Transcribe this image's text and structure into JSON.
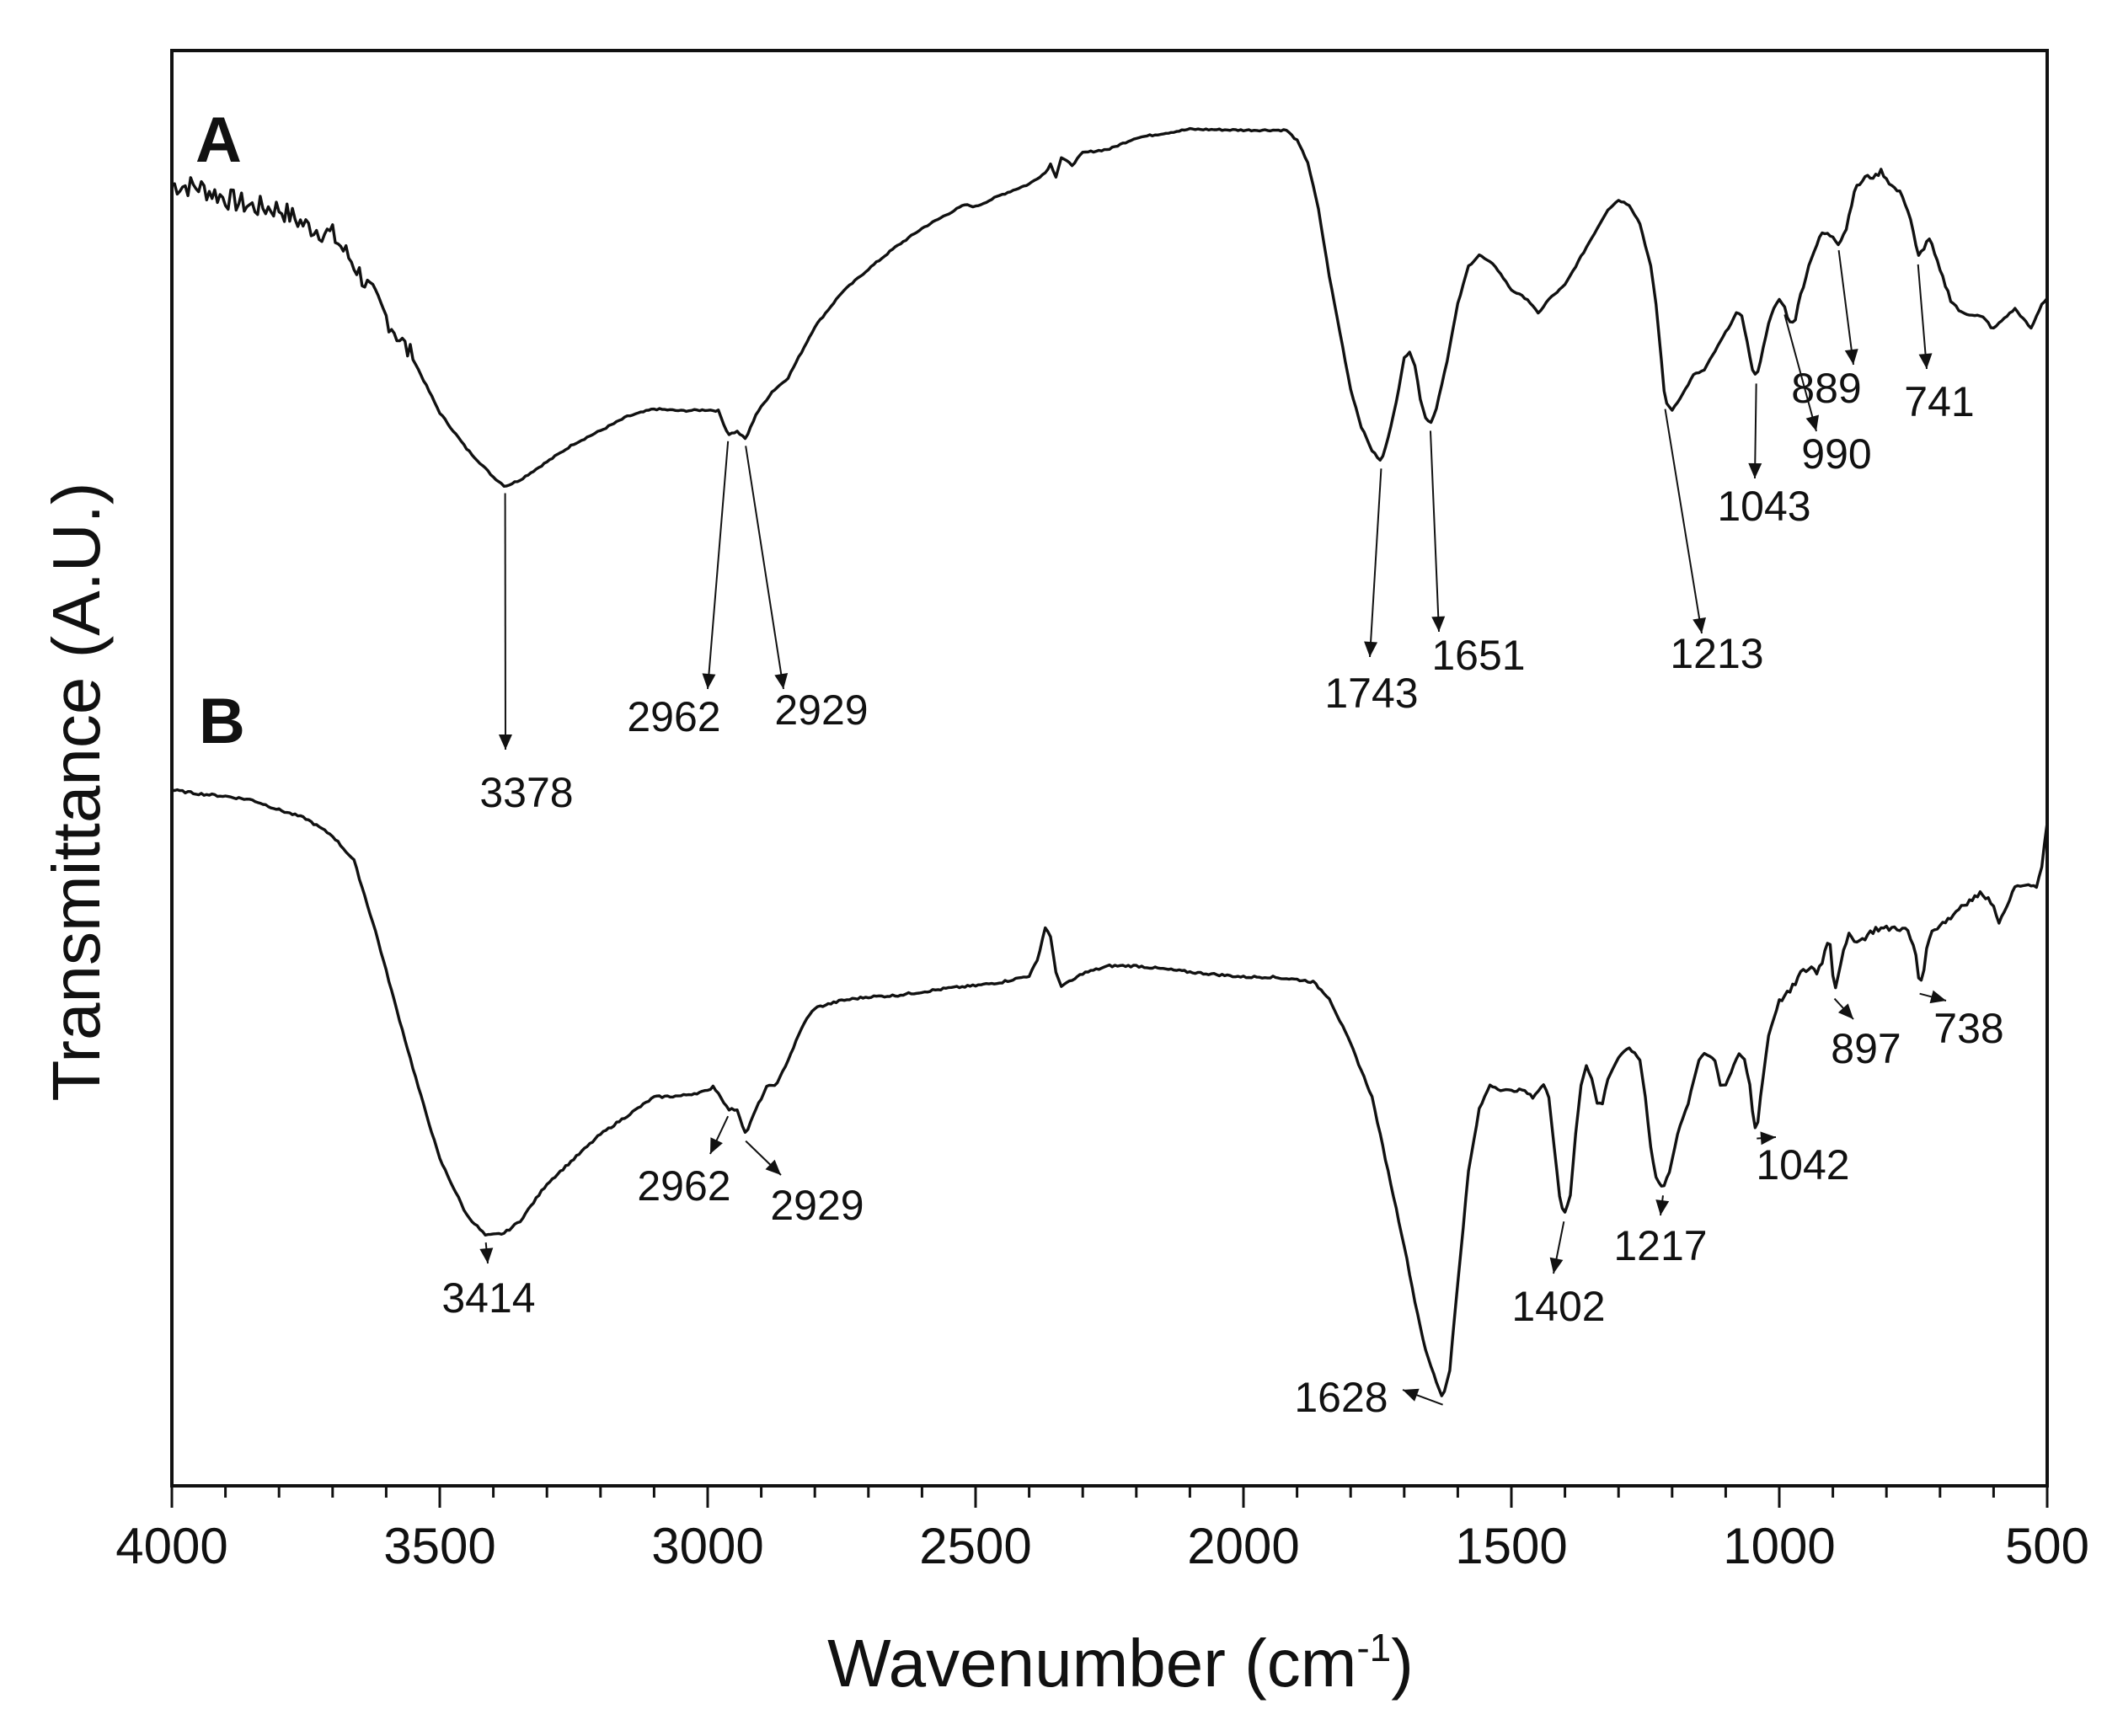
{
  "chart_data": {
    "type": "line",
    "title": "",
    "xlabel": "Wavenumber (cm",
    "xlabel_sup": "-1",
    "xlabel_close": ")",
    "ylabel": "Transmittance (A.U.)",
    "xlim": [
      4000,
      500
    ],
    "ylim": [
      0,
      100
    ],
    "x_ticks": [
      4000,
      3500,
      3000,
      2500,
      2000,
      1500,
      1000,
      500
    ],
    "x_tick_labels": [
      "4000",
      "3500",
      "3000",
      "2500",
      "2000",
      "1500",
      "1000",
      "500"
    ],
    "minor_tick_step": 100,
    "line_color": "#111111",
    "series": [
      {
        "name": "A",
        "label": "A",
        "points": [
          [
            4000,
            85.6
          ],
          [
            3950,
            85.4
          ],
          [
            3900,
            84.2
          ],
          [
            3850,
            83.3
          ],
          [
            3800,
            83.1
          ],
          [
            3750,
            81.3
          ],
          [
            3700,
            80.3
          ],
          [
            3660,
            77.2
          ],
          [
            3620,
            73.5
          ],
          [
            3580,
            69.8
          ],
          [
            3550,
            67.2
          ],
          [
            3500,
            61.5
          ],
          [
            3450,
            57.7
          ],
          [
            3400,
            54.7
          ],
          [
            3378,
            53.7
          ],
          [
            3350,
            54.4
          ],
          [
            3300,
            56.3
          ],
          [
            3250,
            58.2
          ],
          [
            3200,
            59.6
          ],
          [
            3150,
            61.1
          ],
          [
            3100,
            61.9
          ],
          [
            3050,
            61.7
          ],
          [
            3000,
            61.8
          ],
          [
            2980,
            61.7
          ],
          [
            2962,
            59.2
          ],
          [
            2945,
            59.5
          ],
          [
            2929,
            58.7
          ],
          [
            2910,
            61.3
          ],
          [
            2880,
            63.7
          ],
          [
            2850,
            65.2
          ],
          [
            2800,
            70.6
          ],
          [
            2750,
            74.2
          ],
          [
            2700,
            76.7
          ],
          [
            2650,
            79.0
          ],
          [
            2600,
            81.0
          ],
          [
            2550,
            82.6
          ],
          [
            2520,
            83.5
          ],
          [
            2500,
            83.3
          ],
          [
            2450,
            84.6
          ],
          [
            2400,
            85.7
          ],
          [
            2370,
            86.9
          ],
          [
            2360,
            87.8
          ],
          [
            2350,
            86.5
          ],
          [
            2340,
            88.5
          ],
          [
            2320,
            87.7
          ],
          [
            2300,
            89.0
          ],
          [
            2250,
            89.4
          ],
          [
            2200,
            90.6
          ],
          [
            2100,
            91.5
          ],
          [
            2000,
            91.4
          ],
          [
            1950,
            91.4
          ],
          [
            1920,
            91.4
          ],
          [
            1900,
            90.3
          ],
          [
            1880,
            88.0
          ],
          [
            1860,
            83.0
          ],
          [
            1840,
            76.0
          ],
          [
            1820,
            70.0
          ],
          [
            1800,
            64.0
          ],
          [
            1780,
            60.0
          ],
          [
            1760,
            57.5
          ],
          [
            1743,
            56.3
          ],
          [
            1730,
            58.8
          ],
          [
            1710,
            64.0
          ],
          [
            1700,
            67.3
          ],
          [
            1690,
            68.0
          ],
          [
            1680,
            66.5
          ],
          [
            1670,
            63.0
          ],
          [
            1660,
            61.0
          ],
          [
            1651,
            60.3
          ],
          [
            1640,
            62.0
          ],
          [
            1620,
            67.0
          ],
          [
            1600,
            73.0
          ],
          [
            1580,
            77.0
          ],
          [
            1560,
            78.2
          ],
          [
            1530,
            77.0
          ],
          [
            1500,
            74.5
          ],
          [
            1470,
            73.5
          ],
          [
            1450,
            72.0
          ],
          [
            1430,
            73.5
          ],
          [
            1400,
            75.0
          ],
          [
            1380,
            77.0
          ],
          [
            1350,
            80.0
          ],
          [
            1320,
            83.0
          ],
          [
            1300,
            84.0
          ],
          [
            1280,
            83.5
          ],
          [
            1260,
            81.5
          ],
          [
            1240,
            77.0
          ],
          [
            1230,
            73.0
          ],
          [
            1220,
            67.0
          ],
          [
            1213,
            62.6
          ],
          [
            1200,
            61.8
          ],
          [
            1180,
            63.5
          ],
          [
            1160,
            65.5
          ],
          [
            1140,
            66.0
          ],
          [
            1120,
            68.0
          ],
          [
            1100,
            70.0
          ],
          [
            1080,
            72.0
          ],
          [
            1070,
            71.8
          ],
          [
            1060,
            69.0
          ],
          [
            1050,
            66.0
          ],
          [
            1043,
            65.3
          ],
          [
            1035,
            67.0
          ],
          [
            1020,
            71.0
          ],
          [
            1010,
            72.5
          ],
          [
            1000,
            73.5
          ],
          [
            990,
            72.6
          ],
          [
            980,
            71.0
          ],
          [
            970,
            71.5
          ],
          [
            960,
            74.0
          ],
          [
            940,
            78.0
          ],
          [
            920,
            80.5
          ],
          [
            900,
            80.2
          ],
          [
            889,
            79.4
          ],
          [
            875,
            81.0
          ],
          [
            860,
            85.0
          ],
          [
            840,
            86.4
          ],
          [
            820,
            86.5
          ],
          [
            810,
            87.1
          ],
          [
            790,
            85.5
          ],
          [
            770,
            84.5
          ],
          [
            755,
            82.0
          ],
          [
            741,
            77.9
          ],
          [
            730,
            79.0
          ],
          [
            720,
            80.0
          ],
          [
            700,
            76.5
          ],
          [
            680,
            73.5
          ],
          [
            660,
            72.0
          ],
          [
            640,
            72.0
          ],
          [
            620,
            71.5
          ],
          [
            600,
            70.4
          ],
          [
            580,
            71.5
          ],
          [
            560,
            72.5
          ],
          [
            530,
            70.4
          ],
          [
            510,
            73.0
          ],
          [
            500,
            73.6
          ]
        ],
        "peaks": [
          {
            "wavenumber": 3378,
            "label": "3378"
          },
          {
            "wavenumber": 2962,
            "label": "2962"
          },
          {
            "wavenumber": 2929,
            "label": "2929"
          },
          {
            "wavenumber": 1743,
            "label": "1743"
          },
          {
            "wavenumber": 1651,
            "label": "1651"
          },
          {
            "wavenumber": 1213,
            "label": "1213"
          },
          {
            "wavenumber": 1043,
            "label": "1043"
          },
          {
            "wavenumber": 990,
            "label": "990"
          },
          {
            "wavenumber": 889,
            "label": "889"
          },
          {
            "wavenumber": 741,
            "label": "741"
          }
        ]
      },
      {
        "name": "B",
        "label": "B",
        "points": [
          [
            4000,
            49.8
          ],
          [
            3950,
            49.5
          ],
          [
            3900,
            49.3
          ],
          [
            3850,
            49.0
          ],
          [
            3800,
            48.2
          ],
          [
            3750,
            47.5
          ],
          [
            3700,
            46.1
          ],
          [
            3660,
            44.1
          ],
          [
            3620,
            38.4
          ],
          [
            3580,
            32.0
          ],
          [
            3540,
            25.8
          ],
          [
            3500,
            20.0
          ],
          [
            3450,
            15.5
          ],
          [
            3414,
            13.8
          ],
          [
            3380,
            14.0
          ],
          [
            3350,
            15.0
          ],
          [
            3300,
            18.0
          ],
          [
            3250,
            20.0
          ],
          [
            3200,
            22.0
          ],
          [
            3150,
            23.5
          ],
          [
            3100,
            25.0
          ],
          [
            3050,
            25.1
          ],
          [
            3000,
            25.5
          ],
          [
            2990,
            25.9
          ],
          [
            2975,
            25.0
          ],
          [
            2962,
            24.0
          ],
          [
            2945,
            24.0
          ],
          [
            2929,
            22.0
          ],
          [
            2910,
            24.0
          ],
          [
            2890,
            25.8
          ],
          [
            2870,
            26.1
          ],
          [
            2850,
            28.0
          ],
          [
            2820,
            31.0
          ],
          [
            2800,
            32.2
          ],
          [
            2750,
            32.8
          ],
          [
            2700,
            33.1
          ],
          [
            2650,
            33.2
          ],
          [
            2600,
            33.5
          ],
          [
            2550,
            33.8
          ],
          [
            2500,
            34.0
          ],
          [
            2450,
            34.3
          ],
          [
            2400,
            34.8
          ],
          [
            2385,
            36.0
          ],
          [
            2370,
            38.7
          ],
          [
            2360,
            38.0
          ],
          [
            2350,
            35.0
          ],
          [
            2340,
            34.0
          ],
          [
            2320,
            34.4
          ],
          [
            2300,
            35.0
          ],
          [
            2250,
            35.6
          ],
          [
            2200,
            35.6
          ],
          [
            2100,
            35.1
          ],
          [
            2000,
            34.7
          ],
          [
            1950,
            34.7
          ],
          [
            1900,
            34.5
          ],
          [
            1870,
            34.3
          ],
          [
            1840,
            33.0
          ],
          [
            1800,
            29.3
          ],
          [
            1760,
            25.0
          ],
          [
            1730,
            19.0
          ],
          [
            1700,
            13.0
          ],
          [
            1680,
            8.5
          ],
          [
            1660,
            4.5
          ],
          [
            1640,
            2.0
          ],
          [
            1628,
            0.7
          ],
          [
            1615,
            3.0
          ],
          [
            1600,
            10.0
          ],
          [
            1580,
            19.0
          ],
          [
            1560,
            24.0
          ],
          [
            1540,
            26.0
          ],
          [
            1520,
            25.6
          ],
          [
            1500,
            25.5
          ],
          [
            1480,
            25.6
          ],
          [
            1460,
            25.0
          ],
          [
            1440,
            26.0
          ],
          [
            1430,
            25.0
          ],
          [
            1420,
            21.0
          ],
          [
            1410,
            17.0
          ],
          [
            1402,
            15.5
          ],
          [
            1390,
            17.0
          ],
          [
            1380,
            22.0
          ],
          [
            1370,
            26.0
          ],
          [
            1360,
            27.6
          ],
          [
            1350,
            26.5
          ],
          [
            1340,
            24.5
          ],
          [
            1330,
            24.5
          ],
          [
            1320,
            26.5
          ],
          [
            1300,
            28.2
          ],
          [
            1280,
            29.0
          ],
          [
            1260,
            28.0
          ],
          [
            1250,
            25.0
          ],
          [
            1240,
            21.0
          ],
          [
            1230,
            18.5
          ],
          [
            1217,
            17.6
          ],
          [
            1205,
            19.0
          ],
          [
            1190,
            22.0
          ],
          [
            1170,
            24.5
          ],
          [
            1150,
            28.0
          ],
          [
            1140,
            28.6
          ],
          [
            1120,
            28.0
          ],
          [
            1110,
            26.0
          ],
          [
            1100,
            26.0
          ],
          [
            1090,
            27.0
          ],
          [
            1075,
            28.5
          ],
          [
            1065,
            28.0
          ],
          [
            1055,
            26.0
          ],
          [
            1048,
            23.0
          ],
          [
            1042,
            22.2
          ],
          [
            1035,
            25.0
          ],
          [
            1020,
            30.0
          ],
          [
            1000,
            32.8
          ],
          [
            980,
            33.5
          ],
          [
            960,
            35.0
          ],
          [
            940,
            35.5
          ],
          [
            930,
            35.1
          ],
          [
            920,
            36.0
          ],
          [
            910,
            37.5
          ],
          [
            905,
            37.5
          ],
          [
            897,
            33.5
          ],
          [
            885,
            36.0
          ],
          [
            870,
            38.0
          ],
          [
            850,
            37.6
          ],
          [
            820,
            38.6
          ],
          [
            800,
            38.6
          ],
          [
            780,
            38.7
          ],
          [
            760,
            38.4
          ],
          [
            745,
            36.5
          ],
          [
            738,
            33.9
          ],
          [
            730,
            35.5
          ],
          [
            720,
            38.0
          ],
          [
            700,
            39.0
          ],
          [
            680,
            39.5
          ],
          [
            660,
            40.5
          ],
          [
            640,
            41.0
          ],
          [
            620,
            41.5
          ],
          [
            600,
            40.5
          ],
          [
            590,
            39.0
          ],
          [
            580,
            40.0
          ],
          [
            560,
            42.0
          ],
          [
            540,
            42.1
          ],
          [
            520,
            42.0
          ],
          [
            510,
            43.5
          ],
          [
            505,
            45.5
          ],
          [
            500,
            47.2
          ]
        ],
        "peaks": [
          {
            "wavenumber": 3414,
            "label": "3414"
          },
          {
            "wavenumber": 2962,
            "label": "2962"
          },
          {
            "wavenumber": 2929,
            "label": "2929"
          },
          {
            "wavenumber": 1628,
            "label": "1628"
          },
          {
            "wavenumber": 1402,
            "label": "1402"
          },
          {
            "wavenumber": 1217,
            "label": "1217"
          },
          {
            "wavenumber": 1042,
            "label": "1042"
          },
          {
            "wavenumber": 897,
            "label": "897"
          },
          {
            "wavenumber": 738,
            "label": "738"
          }
        ]
      }
    ]
  }
}
